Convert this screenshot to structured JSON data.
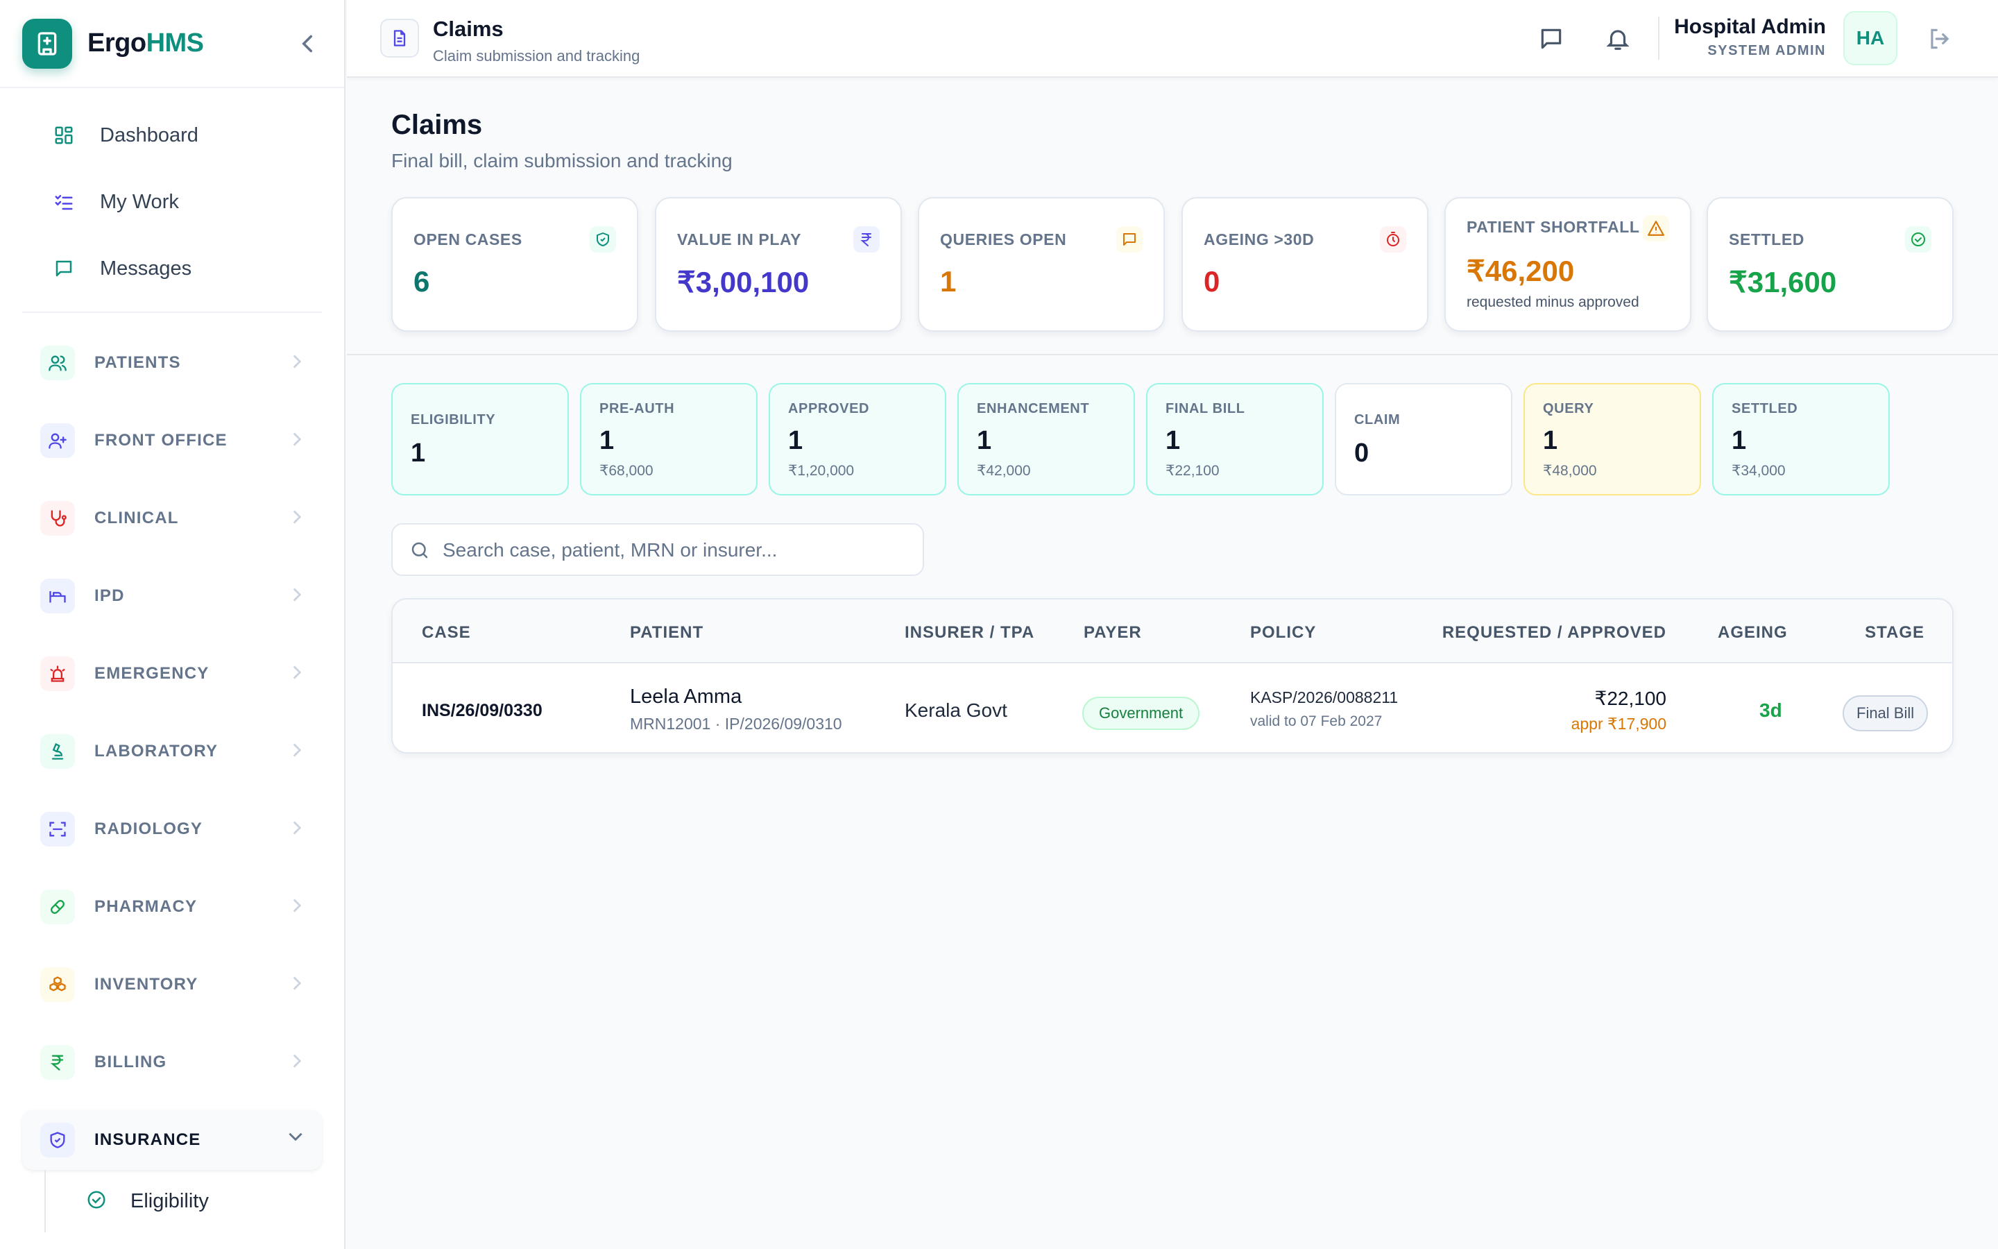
{
  "brand": {
    "part1": "Ergo",
    "part2": "HMS"
  },
  "nav": {
    "top": [
      {
        "label": "Dashboard",
        "icon": "dashboard-grid-icon"
      },
      {
        "label": "My Work",
        "icon": "checklist-icon"
      },
      {
        "label": "Messages",
        "icon": "message-icon"
      }
    ],
    "groups": [
      {
        "label": "PATIENTS",
        "icon": "users-icon",
        "color": "#0f8f7e"
      },
      {
        "label": "FRONT OFFICE",
        "icon": "user-plus-icon",
        "color": "#4f46e5"
      },
      {
        "label": "CLINICAL",
        "icon": "stethoscope-icon",
        "color": "#dc2626"
      },
      {
        "label": "IPD",
        "icon": "bed-icon",
        "color": "#4f46e5"
      },
      {
        "label": "EMERGENCY",
        "icon": "siren-icon",
        "color": "#dc2626"
      },
      {
        "label": "LABORATORY",
        "icon": "microscope-icon",
        "color": "#0f8f7e"
      },
      {
        "label": "RADIOLOGY",
        "icon": "scan-icon",
        "color": "#4f46e5"
      },
      {
        "label": "PHARMACY",
        "icon": "pill-icon",
        "color": "#16a34a"
      },
      {
        "label": "INVENTORY",
        "icon": "boxes-icon",
        "color": "#d97706"
      },
      {
        "label": "BILLING",
        "icon": "rupee-icon",
        "color": "#16a34a"
      },
      {
        "label": "INSURANCE",
        "icon": "shield-icon",
        "color": "#4f46e5"
      }
    ],
    "sub": [
      {
        "label": "Eligibility",
        "icon": "check-circle-icon"
      }
    ]
  },
  "topbar": {
    "title": "Claims",
    "subtitle": "Claim submission and tracking",
    "user_name": "Hospital Admin",
    "user_role": "SYSTEM ADMIN",
    "avatar": "HA"
  },
  "page": {
    "title": "Claims",
    "subtitle": "Final bill, claim submission and tracking"
  },
  "kpis": [
    {
      "label": "OPEN CASES",
      "value": "6",
      "color": "#0f766e",
      "icon": "shield-check-icon",
      "icon_bg": "#ecfdf5"
    },
    {
      "label": "VALUE IN PLAY",
      "value": "₹3,00,100",
      "color": "#4338ca",
      "icon": "rupee-icon",
      "icon_bg": "#eef2ff"
    },
    {
      "label": "QUERIES OPEN",
      "value": "1",
      "color": "#d97706",
      "icon": "message-icon",
      "icon_bg": "#fffbeb"
    },
    {
      "label": "AGEING >30D",
      "value": "0",
      "color": "#dc2626",
      "icon": "timer-icon",
      "icon_bg": "#fef2f2"
    },
    {
      "label": "PATIENT SHORTFALL",
      "value": "₹46,200",
      "note": "requested minus approved",
      "color": "#d97706",
      "icon": "warning-icon",
      "icon_bg": "#fffbeb"
    },
    {
      "label": "SETTLED",
      "value": "₹31,600",
      "color": "#16a34a",
      "icon": "check-circle-icon",
      "icon_bg": "#ecfdf5"
    }
  ],
  "stages": [
    {
      "label": "ELIGIBILITY",
      "count": "1",
      "amount": ""
    },
    {
      "label": "PRE-AUTH",
      "count": "1",
      "amount": "₹68,000"
    },
    {
      "label": "APPROVED",
      "count": "1",
      "amount": "₹1,20,000"
    },
    {
      "label": "ENHANCEMENT",
      "count": "1",
      "amount": "₹42,000"
    },
    {
      "label": "FINAL BILL",
      "count": "1",
      "amount": "₹22,100"
    },
    {
      "label": "CLAIM",
      "count": "0",
      "amount": ""
    },
    {
      "label": "QUERY",
      "count": "1",
      "amount": "₹48,000"
    },
    {
      "label": "SETTLED",
      "count": "1",
      "amount": "₹34,000"
    }
  ],
  "search": {
    "placeholder": "Search case, patient, MRN or insurer..."
  },
  "table": {
    "headers": [
      "CASE",
      "PATIENT",
      "INSURER / TPA",
      "PAYER",
      "POLICY",
      "REQUESTED / APPROVED",
      "AGEING",
      "STAGE"
    ],
    "rows": [
      {
        "case": "INS/26/09/0330",
        "patient": "Leela Amma",
        "patient_sub": "MRN12001 · IP/2026/09/0310",
        "insurer": "Kerala Govt",
        "payer": "Government",
        "policy": "KASP/2026/0088211",
        "policy_sub": "valid to 07 Feb 2027",
        "requested": "₹22,100",
        "approved": "appr ₹17,900",
        "ageing": "3d",
        "stage": "Final Bill"
      }
    ]
  }
}
